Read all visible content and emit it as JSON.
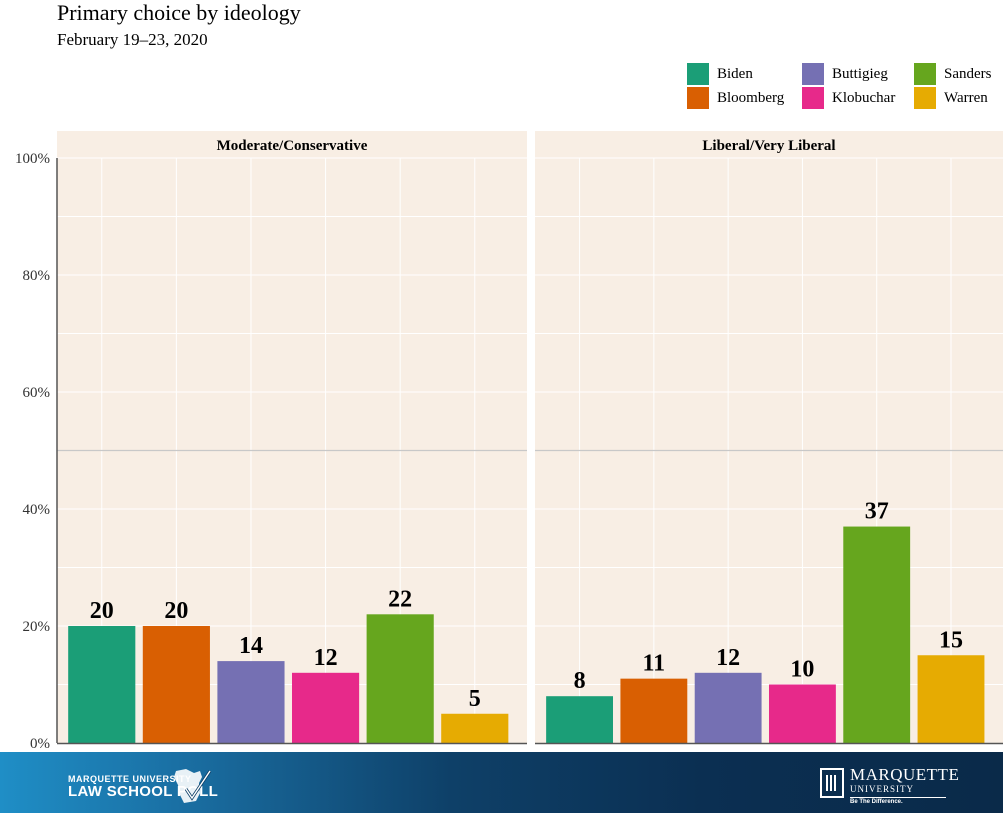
{
  "chart_data": {
    "type": "bar",
    "title": "Primary choice by ideology",
    "subtitle": "February 19–23, 2020",
    "xlabel": "",
    "ylabel": "",
    "ylim": [
      0,
      100
    ],
    "yticks": [
      0,
      20,
      40,
      60,
      80,
      100
    ],
    "ytick_labels": [
      "0%",
      "20%",
      "40%",
      "60%",
      "80%",
      "100%"
    ],
    "reference_line": 50,
    "legend_position": "top-right",
    "categories": [
      "Biden",
      "Bloomberg",
      "Buttigieg",
      "Klobuchar",
      "Sanders",
      "Warren"
    ],
    "colors": {
      "Biden": "#1b9e77",
      "Bloomberg": "#d95f02",
      "Buttigieg": "#7570b3",
      "Klobuchar": "#e7298a",
      "Sanders": "#66a61e",
      "Warren": "#e6ab02"
    },
    "panels": [
      {
        "name": "Moderate/Conservative",
        "values": [
          20,
          20,
          14,
          12,
          22,
          5
        ]
      },
      {
        "name": "Liberal/Very Liberal",
        "values": [
          8,
          11,
          12,
          10,
          37,
          15
        ]
      }
    ]
  },
  "footer": {
    "left_logo_line1": "MARQUETTE UNIVERSITY",
    "left_logo_line2": "LAW SCHOOL POLL",
    "right_logo_name": "MARQUETTE",
    "right_logo_sub": "UNIVERSITY",
    "right_logo_tag": "Be The Difference."
  }
}
